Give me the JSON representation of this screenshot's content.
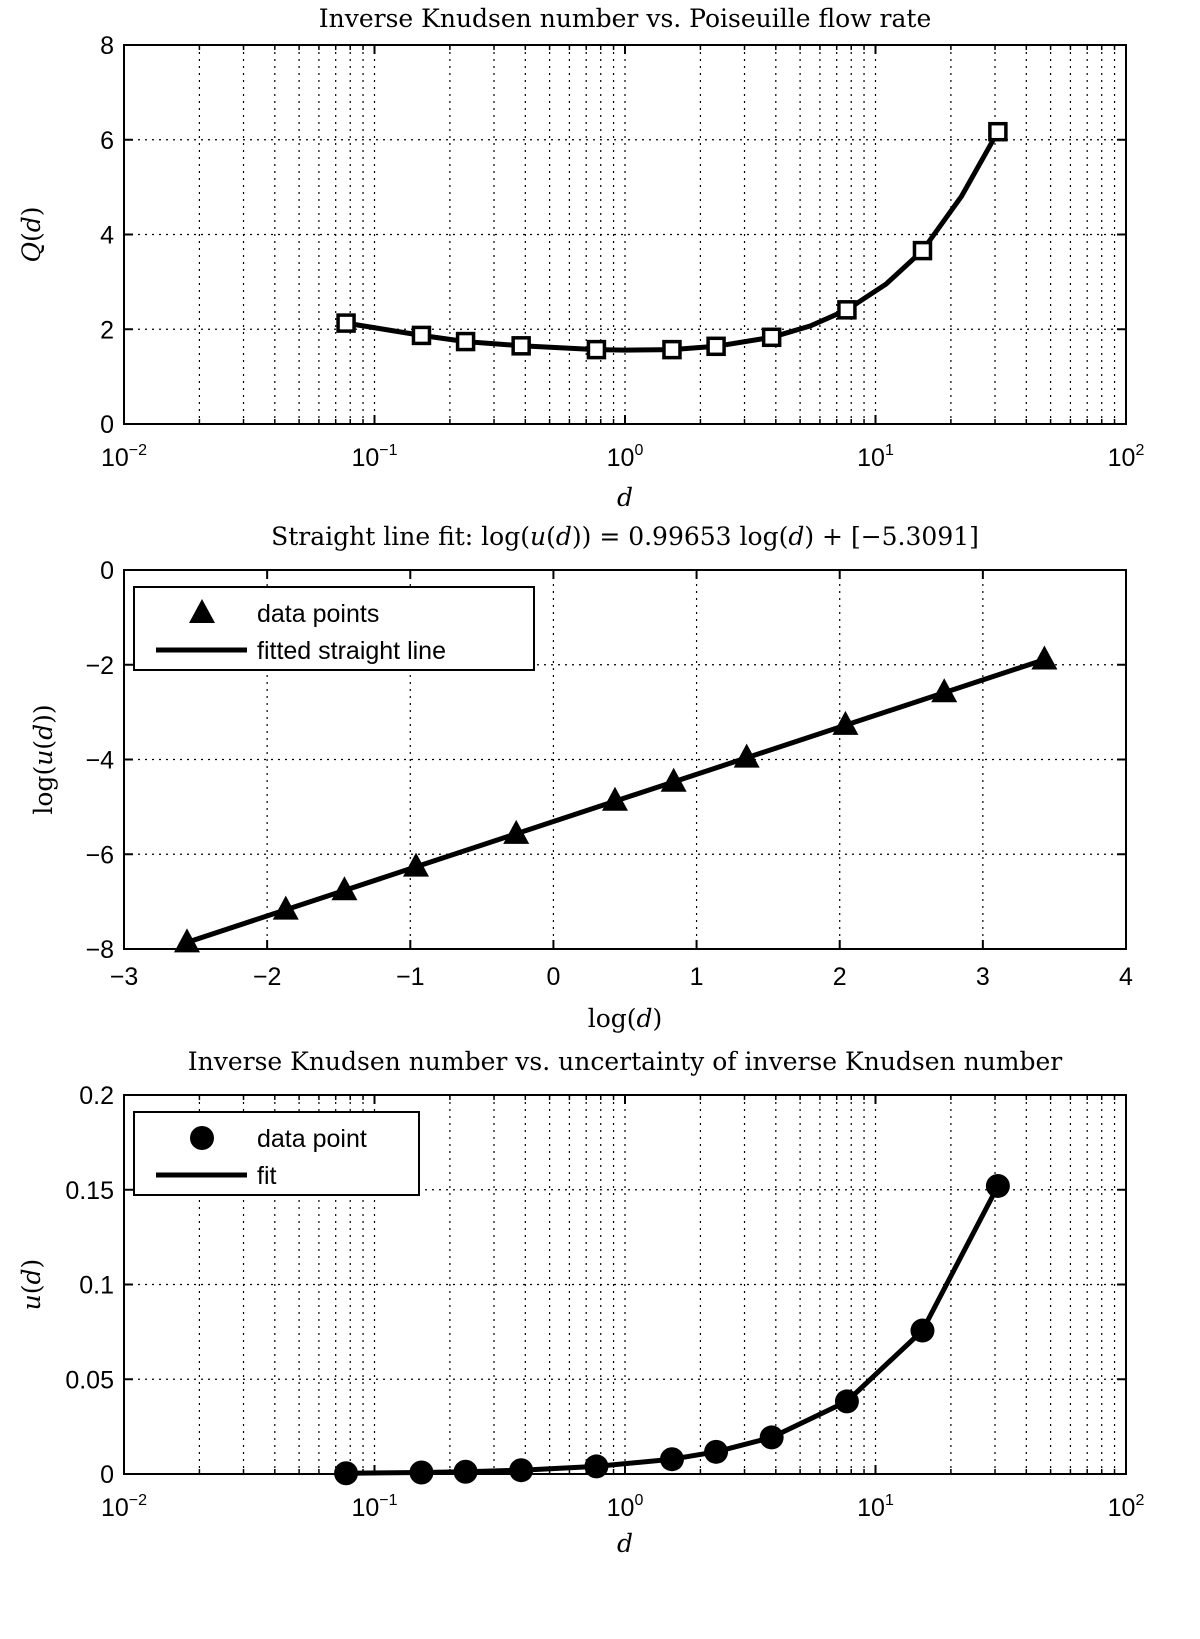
{
  "chart_data": [
    {
      "type": "line",
      "title": "Inverse Knudsen number vs. Poiseuille flow rate",
      "xlabel": "d",
      "ylabel": "Q(d)",
      "xscale": "log",
      "xlim": [
        0.01,
        100
      ],
      "ylim": [
        0,
        8
      ],
      "xticks": [
        {
          "value": 0.01,
          "base": "10",
          "exp": "−2"
        },
        {
          "value": 0.1,
          "base": "10",
          "exp": "−1"
        },
        {
          "value": 1,
          "base": "10",
          "exp": "0"
        },
        {
          "value": 10,
          "base": "10",
          "exp": "1"
        },
        {
          "value": 100,
          "base": "10",
          "exp": "2"
        }
      ],
      "yticks": [
        {
          "value": 0,
          "label": "0"
        },
        {
          "value": 2,
          "label": "2"
        },
        {
          "value": 4,
          "label": "4"
        },
        {
          "value": 6,
          "label": "6"
        },
        {
          "value": 8,
          "label": "8"
        }
      ],
      "grid": true,
      "marker": "square",
      "series": [
        {
          "x": [
            0.077,
            0.154,
            0.231,
            0.385,
            0.769,
            1.54,
            2.31,
            3.85,
            7.69,
            15.4,
            30.8
          ],
          "y": [
            2.13,
            1.87,
            1.74,
            1.65,
            1.57,
            1.57,
            1.64,
            1.83,
            2.41,
            3.66,
            6.17
          ]
        }
      ],
      "curve": {
        "x": [
          0.077,
          0.154,
          0.231,
          0.385,
          0.769,
          1.0,
          1.54,
          2.31,
          3.85,
          5.5,
          7.69,
          11.0,
          15.4,
          22.0,
          30.8
        ],
        "y": [
          2.13,
          1.87,
          1.74,
          1.65,
          1.57,
          1.56,
          1.57,
          1.64,
          1.83,
          2.07,
          2.41,
          2.95,
          3.66,
          4.8,
          6.17
        ]
      }
    },
    {
      "type": "line",
      "title": "Straight line fit: log(u(d)) = 0.99653 log(d) + [−5.3091]",
      "xlabel": "log(d)",
      "ylabel": "log(u(d))",
      "xlim": [
        -3,
        4
      ],
      "ylim": [
        -8,
        0
      ],
      "xticks": [
        {
          "value": -3,
          "label": "−3"
        },
        {
          "value": -2,
          "label": "−2"
        },
        {
          "value": -1,
          "label": "−1"
        },
        {
          "value": 0,
          "label": "0"
        },
        {
          "value": 1,
          "label": "1"
        },
        {
          "value": 2,
          "label": "2"
        },
        {
          "value": 3,
          "label": "3"
        },
        {
          "value": 4,
          "label": "4"
        }
      ],
      "yticks": [
        {
          "value": -8,
          "label": "−8"
        },
        {
          "value": -6,
          "label": "−6"
        },
        {
          "value": -4,
          "label": "−4"
        },
        {
          "value": -2,
          "label": "−2"
        },
        {
          "value": 0,
          "label": "0"
        }
      ],
      "grid": true,
      "legend": {
        "position": "top-left",
        "entries": [
          "data points",
          "fitted straight line"
        ]
      },
      "series": [
        {
          "name": "data points",
          "marker": "triangle",
          "x": [
            -2.56,
            -1.87,
            -1.46,
            -0.96,
            -0.26,
            0.43,
            0.84,
            1.35,
            2.04,
            2.73,
            3.43
          ],
          "y": [
            -7.86,
            -7.17,
            -6.76,
            -6.26,
            -5.57,
            -4.87,
            -4.47,
            -3.96,
            -3.27,
            -2.58,
            -1.89
          ]
        },
        {
          "name": "fitted straight line",
          "slope": 0.99653,
          "intercept": -5.3091,
          "x": [
            -2.56,
            3.43
          ]
        }
      ]
    },
    {
      "type": "line",
      "title": "Inverse Knudsen number vs. uncertainty of inverse Knudsen number",
      "xlabel": "d",
      "ylabel": "u(d)",
      "xscale": "log",
      "xlim": [
        0.01,
        100
      ],
      "ylim": [
        0,
        0.2
      ],
      "xticks": [
        {
          "value": 0.01,
          "base": "10",
          "exp": "−2"
        },
        {
          "value": 0.1,
          "base": "10",
          "exp": "−1"
        },
        {
          "value": 1,
          "base": "10",
          "exp": "0"
        },
        {
          "value": 10,
          "base": "10",
          "exp": "1"
        },
        {
          "value": 100,
          "base": "10",
          "exp": "2"
        }
      ],
      "yticks": [
        {
          "value": 0,
          "label": "0"
        },
        {
          "value": 0.05,
          "label": "0.05"
        },
        {
          "value": 0.1,
          "label": "0.1"
        },
        {
          "value": 0.15,
          "label": "0.15"
        },
        {
          "value": 0.2,
          "label": "0.2"
        }
      ],
      "grid": true,
      "legend": {
        "position": "top-left",
        "entries": [
          "data point",
          "fit"
        ]
      },
      "series": [
        {
          "name": "data point",
          "marker": "circle",
          "x": [
            0.077,
            0.154,
            0.231,
            0.385,
            0.769,
            1.54,
            2.31,
            3.85,
            7.69,
            15.4,
            30.8
          ],
          "y": [
            0.0004,
            0.0008,
            0.0012,
            0.002,
            0.004,
            0.0078,
            0.0117,
            0.0193,
            0.0383,
            0.0757,
            0.152
          ]
        },
        {
          "name": "fit",
          "x": [
            0.077,
            0.154,
            0.231,
            0.385,
            0.769,
            1.54,
            2.31,
            3.85,
            7.69,
            15.4,
            30.8
          ],
          "y": [
            0.0004,
            0.0008,
            0.0012,
            0.002,
            0.004,
            0.0078,
            0.0117,
            0.0193,
            0.0383,
            0.0757,
            0.152
          ]
        }
      ]
    }
  ]
}
